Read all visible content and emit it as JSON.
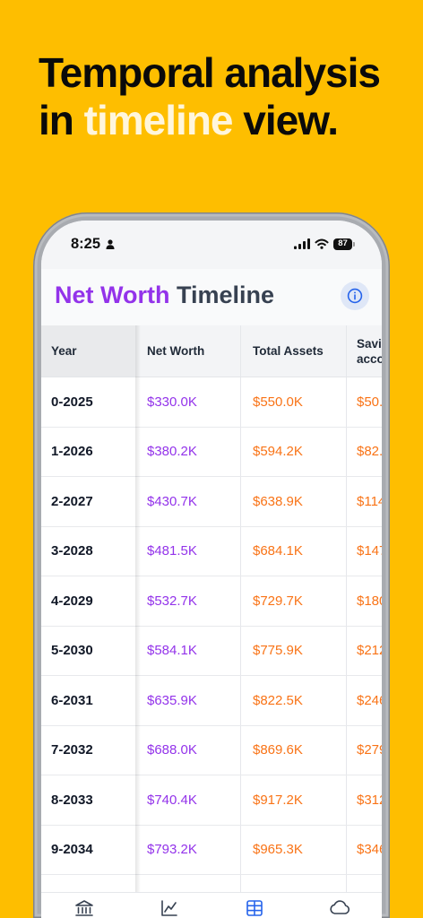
{
  "headline": {
    "line1": "Temporal analysis",
    "line2_start": "in",
    "line2_highlight": "timeline",
    "line2_end": "view."
  },
  "status_bar": {
    "time": "8:25",
    "battery_level": "87",
    "icons": [
      "person-icon",
      "signal-icon",
      "wifi-icon",
      "battery-icon"
    ]
  },
  "header": {
    "title_primary": "Net Worth",
    "title_secondary": "Timeline",
    "info_icon": "info-icon"
  },
  "table": {
    "columns": [
      "Year",
      "Net Worth",
      "Total Assets"
    ],
    "truncated_column_header": [
      "Savi",
      "acco"
    ],
    "rows": [
      {
        "year": "0-2025",
        "net_worth": "$330.0K",
        "total_assets": "$550.0K",
        "savings": "$50."
      },
      {
        "year": "1-2026",
        "net_worth": "$380.2K",
        "total_assets": "$594.2K",
        "savings": "$82."
      },
      {
        "year": "2-2027",
        "net_worth": "$430.7K",
        "total_assets": "$638.9K",
        "savings": "$114"
      },
      {
        "year": "3-2028",
        "net_worth": "$481.5K",
        "total_assets": "$684.1K",
        "savings": "$147"
      },
      {
        "year": "4-2029",
        "net_worth": "$532.7K",
        "total_assets": "$729.7K",
        "savings": "$180"
      },
      {
        "year": "5-2030",
        "net_worth": "$584.1K",
        "total_assets": "$775.9K",
        "savings": "$212"
      },
      {
        "year": "6-2031",
        "net_worth": "$635.9K",
        "total_assets": "$822.5K",
        "savings": "$246"
      },
      {
        "year": "7-2032",
        "net_worth": "$688.0K",
        "total_assets": "$869.6K",
        "savings": "$279"
      },
      {
        "year": "8-2033",
        "net_worth": "$740.4K",
        "total_assets": "$917.2K",
        "savings": "$312"
      },
      {
        "year": "9-2034",
        "net_worth": "$793.2K",
        "total_assets": "$965.3K",
        "savings": "$346"
      }
    ]
  },
  "tab_bar": {
    "tabs": [
      {
        "icon": "bank-icon",
        "active": false
      },
      {
        "icon": "chart-line-icon",
        "active": false
      },
      {
        "icon": "table-icon",
        "active": true
      },
      {
        "icon": "cloud-icon",
        "active": false
      }
    ]
  },
  "colors": {
    "background": "#FEBE00",
    "headline_highlight": "#FFF6DC",
    "net_worth": "#9333EA",
    "assets": "#F97316",
    "accent": "#2563EB"
  }
}
